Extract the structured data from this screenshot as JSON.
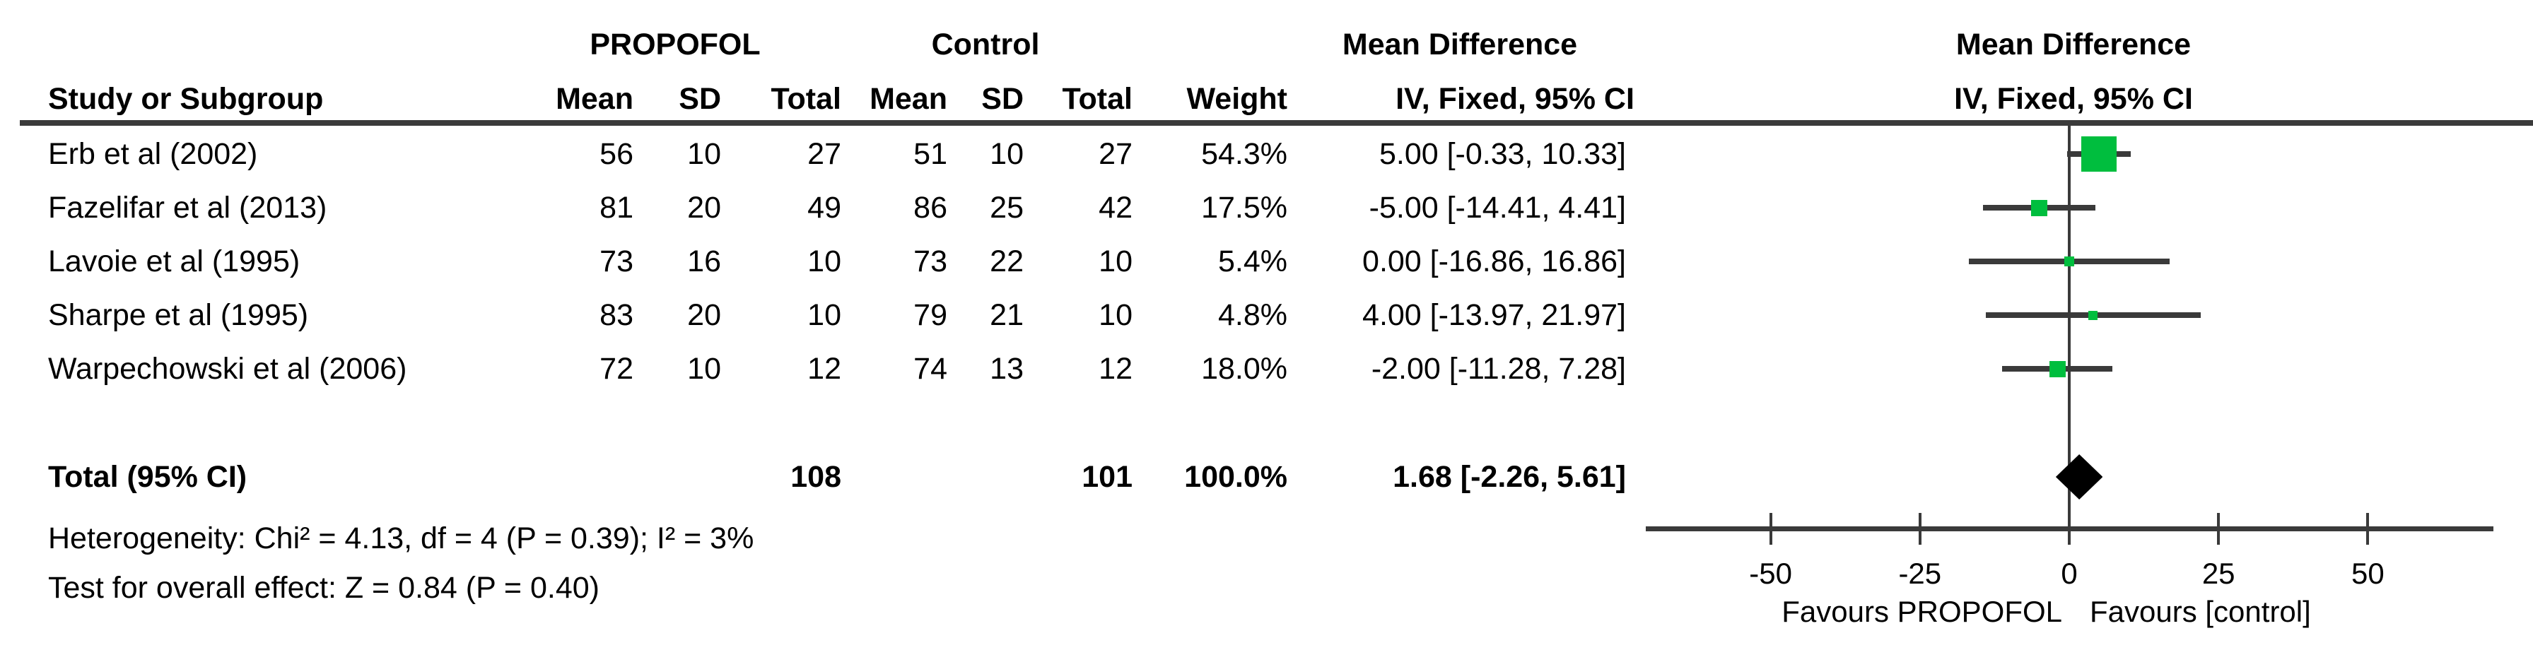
{
  "table": {
    "group1_label": "PROPOFOL",
    "group2_label": "Control",
    "md_header": "Mean Difference",
    "md_subheader": "IV, Fixed, 95% CI",
    "plot_md_header": "Mean Difference",
    "plot_md_subheader": "IV, Fixed, 95% CI",
    "col_headers": {
      "study": "Study or Subgroup",
      "mean": "Mean",
      "sd": "SD",
      "total": "Total",
      "weight": "Weight"
    },
    "studies": [
      {
        "name": "Erb et al (2002)",
        "e_mean": "56",
        "e_sd": "10",
        "e_total": "27",
        "c_mean": "51",
        "c_sd": "10",
        "c_total": "27",
        "weight": "54.3%",
        "ci_text": "5.00 [-0.33, 10.33]",
        "md": 5.0,
        "lo": -0.33,
        "hi": 10.33,
        "weight_pct": 54.3
      },
      {
        "name": "Fazelifar et al (2013)",
        "e_mean": "81",
        "e_sd": "20",
        "e_total": "49",
        "c_mean": "86",
        "c_sd": "25",
        "c_total": "42",
        "weight": "17.5%",
        "ci_text": "-5.00 [-14.41, 4.41]",
        "md": -5.0,
        "lo": -14.41,
        "hi": 4.41,
        "weight_pct": 17.5
      },
      {
        "name": "Lavoie et al (1995)",
        "e_mean": "73",
        "e_sd": "16",
        "e_total": "10",
        "c_mean": "73",
        "c_sd": "22",
        "c_total": "10",
        "weight": "5.4%",
        "ci_text": "0.00 [-16.86, 16.86]",
        "md": 0.0,
        "lo": -16.86,
        "hi": 16.86,
        "weight_pct": 5.4
      },
      {
        "name": "Sharpe et al (1995)",
        "e_mean": "83",
        "e_sd": "20",
        "e_total": "10",
        "c_mean": "79",
        "c_sd": "21",
        "c_total": "10",
        "weight": "4.8%",
        "ci_text": "4.00 [-13.97, 21.97]",
        "md": 4.0,
        "lo": -13.97,
        "hi": 21.97,
        "weight_pct": 4.8
      },
      {
        "name": "Warpechowski et al (2006)",
        "e_mean": "72",
        "e_sd": "10",
        "e_total": "12",
        "c_mean": "74",
        "c_sd": "13",
        "c_total": "12",
        "weight": "18.0%",
        "ci_text": "-2.00 [-11.28, 7.28]",
        "md": -2.0,
        "lo": -11.28,
        "hi": 7.28,
        "weight_pct": 18.0
      }
    ],
    "total_row": {
      "label": "Total (95% CI)",
      "e_total": "108",
      "c_total": "101",
      "weight": "100.0%",
      "ci_text": "1.68 [-2.26, 5.61]",
      "md": 1.68,
      "lo": -2.26,
      "hi": 5.61
    },
    "heterogeneity": "Heterogeneity: Chi² = 4.13, df = 4 (P = 0.39); I² = 3%",
    "overall_effect": "Test for overall effect: Z = 0.84 (P = 0.40)"
  },
  "axis": {
    "tick_values": [
      -50,
      -25,
      0,
      25,
      50
    ],
    "tick_labels": [
      "-50",
      "-25",
      "0",
      "25",
      "50"
    ],
    "favours_left": "Favours PROPOFOL",
    "favours_right": "Favours [control]"
  },
  "colors": {
    "marker_green": "#00be3e",
    "line_gray": "#3a3a3a",
    "diamond_black": "#000000"
  },
  "chart_data": {
    "type": "scatter",
    "subtype": "forest-plot-meta-analysis",
    "title": "Mean Difference IV, Fixed, 95% CI",
    "xlabel": "Mean Difference",
    "xlim": [
      -71,
      71
    ],
    "x_ticks": [
      -50,
      -25,
      0,
      25,
      50
    ],
    "grid": false,
    "zero_line": 0,
    "series": [
      {
        "name": "Erb et al (2002)",
        "md": 5.0,
        "ci": [
          -0.33,
          10.33
        ],
        "weight_pct": 54.3
      },
      {
        "name": "Fazelifar et al (2013)",
        "md": -5.0,
        "ci": [
          -14.41,
          4.41
        ],
        "weight_pct": 17.5
      },
      {
        "name": "Lavoie et al (1995)",
        "md": 0.0,
        "ci": [
          -16.86,
          16.86
        ],
        "weight_pct": 5.4
      },
      {
        "name": "Sharpe et al (1995)",
        "md": 4.0,
        "ci": [
          -13.97,
          21.97
        ],
        "weight_pct": 4.8
      },
      {
        "name": "Warpechowski et al (2006)",
        "md": -2.0,
        "ci": [
          -11.28,
          7.28
        ],
        "weight_pct": 18.0
      }
    ],
    "overall": {
      "name": "Total (95% CI)",
      "md": 1.68,
      "ci": [
        -2.26,
        5.61
      ],
      "weight_pct": 100.0
    },
    "totals": {
      "propofol_n": 108,
      "control_n": 101
    },
    "heterogeneity": {
      "chi2": 4.13,
      "df": 4,
      "p": 0.39,
      "i2_pct": 3
    },
    "overall_effect_test": {
      "z": 0.84,
      "p": 0.4
    },
    "favours_left": "Favours PROPOFOL",
    "favours_right": "Favours [control]",
    "legend_position": "none"
  }
}
